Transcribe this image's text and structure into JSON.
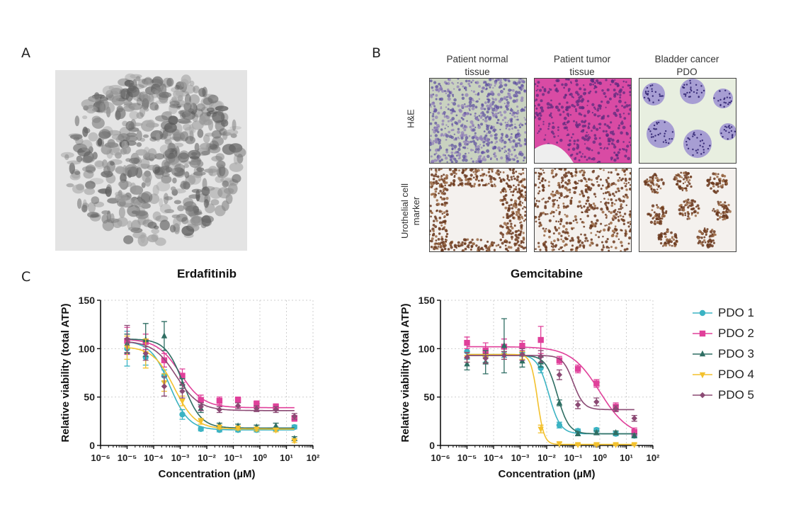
{
  "panels": {
    "a": "A",
    "b": "B",
    "c": "C"
  },
  "histology": {
    "columns": [
      "Patient normal tissue",
      "Patient tumor tissue",
      "Bladder cancer PDO"
    ],
    "column_lines": [
      [
        "Patient normal",
        "tissue"
      ],
      [
        "Patient tumor",
        "tissue"
      ],
      [
        "Bladder cancer",
        "PDO"
      ]
    ],
    "rows": [
      "H&E",
      "Urothelial cell marker"
    ],
    "row_lines": [
      [
        "H&E"
      ],
      [
        "Urothelial cell",
        "marker"
      ]
    ]
  },
  "colors": {
    "PDO 1": "#3bb3c3",
    "PDO 2": "#e0409a",
    "PDO 3": "#2f6e63",
    "PDO 4": "#f3c12d",
    "PDO 5": "#8b4a74"
  },
  "legend": [
    "PDO 1",
    "PDO 2",
    "PDO 3",
    "PDO 4",
    "PDO 5"
  ],
  "chart_data": [
    {
      "type": "scatter",
      "title": "Erdafitinib",
      "xlabel": "Concentration (µM)",
      "ylabel": "Relative viability (total ATP)",
      "x_scale": "log",
      "xlim": [
        1e-06,
        100
      ],
      "x_ticks": [
        "10⁻⁶",
        "10⁻⁵",
        "10⁻⁴",
        "10⁻³",
        "10⁻²",
        "10⁻¹",
        "10⁰",
        "10¹",
        "10²"
      ],
      "ylim": [
        0,
        150
      ],
      "y_ticks": [
        0,
        50,
        100,
        150
      ],
      "grid": true,
      "x": [
        1e-05,
        5e-05,
        0.00025,
        0.0012,
        0.006,
        0.03,
        0.15,
        0.75,
        4,
        20
      ],
      "series": [
        {
          "name": "PDO 1",
          "values": [
            100,
            91,
            72,
            32,
            17,
            16,
            16,
            16,
            17,
            19
          ],
          "errors": [
            18,
            8,
            6,
            5,
            2,
            2,
            2,
            2,
            2,
            2
          ],
          "fit": {
            "top": 108,
            "bottom": 16,
            "ic50": 0.0004,
            "hill": 1.2
          }
        },
        {
          "name": "PDO 2",
          "values": [
            108,
            107,
            88,
            72,
            47,
            46,
            47,
            43,
            40,
            28
          ],
          "errors": [
            14,
            8,
            7,
            7,
            5,
            4,
            3,
            3,
            3,
            3
          ],
          "fit": {
            "top": 110,
            "bottom": 39,
            "ic50": 0.001,
            "hill": 1.0
          }
        },
        {
          "name": "PDO 3",
          "values": [
            105,
            109,
            113,
            64,
            38,
            21,
            20,
            19,
            20,
            7
          ],
          "errors": [
            10,
            17,
            15,
            5,
            4,
            2,
            2,
            2,
            3,
            2
          ],
          "fit": {
            "top": 110,
            "bottom": 18,
            "ic50": 0.0013,
            "hill": 1.3
          }
        },
        {
          "name": "PDO 4",
          "values": [
            101,
            95,
            65,
            46,
            25,
            19,
            18,
            17,
            16,
            5
          ],
          "errors": [
            12,
            15,
            9,
            5,
            3,
            2,
            2,
            2,
            2,
            2
          ],
          "fit": {
            "top": 102,
            "bottom": 17,
            "ic50": 0.0006,
            "hill": 1.1
          }
        },
        {
          "name": "PDO 5",
          "values": [
            110,
            95,
            61,
            56,
            40,
            37,
            41,
            38,
            37,
            30
          ],
          "errors": [
            14,
            7,
            10,
            7,
            4,
            3,
            3,
            3,
            3,
            3
          ],
          "fit": {
            "top": 108,
            "bottom": 36,
            "ic50": 0.0007,
            "hill": 1.0
          }
        }
      ]
    },
    {
      "type": "scatter",
      "title": "Gemcitabine",
      "xlabel": "Concentration (µM)",
      "ylabel": "Relative viability (total ATP)",
      "x_scale": "log",
      "xlim": [
        1e-06,
        100
      ],
      "x_ticks": [
        "10⁻⁶",
        "10⁻⁵",
        "10⁻⁴",
        "10⁻³",
        "10⁻²",
        "10⁻¹",
        "10⁰",
        "10¹",
        "10²"
      ],
      "ylim": [
        0,
        150
      ],
      "y_ticks": [
        0,
        50,
        100,
        150
      ],
      "grid": true,
      "x": [
        1e-05,
        5e-05,
        0.00025,
        0.0012,
        0.006,
        0.03,
        0.15,
        0.75,
        4,
        20
      ],
      "series": [
        {
          "name": "PDO 1",
          "values": [
            97,
            92,
            94,
            96,
            80,
            21,
            15,
            16,
            12,
            10
          ],
          "errors": [
            8,
            6,
            3,
            4,
            5,
            3,
            2,
            2,
            2,
            2
          ],
          "fit": {
            "top": 94,
            "bottom": 12,
            "ic50": 0.012,
            "hill": 2.0
          }
        },
        {
          "name": "PDO 2",
          "values": [
            106,
            98,
            102,
            103,
            109,
            88,
            79,
            64,
            40,
            14
          ],
          "errors": [
            6,
            8,
            8,
            5,
            14,
            4,
            4,
            4,
            4,
            4
          ],
          "fit": {
            "top": 102,
            "bottom": 9,
            "ic50": 1.0,
            "hill": 0.8
          }
        },
        {
          "name": "PDO 3",
          "values": [
            84,
            86,
            103,
            87,
            86,
            44,
            12,
            13,
            13,
            10
          ],
          "errors": [
            6,
            12,
            28,
            6,
            5,
            3,
            2,
            2,
            2,
            2
          ],
          "fit": {
            "top": 93,
            "bottom": 12,
            "ic50": 0.025,
            "hill": 2.0
          }
        },
        {
          "name": "PDO 4",
          "values": [
            91,
            90,
            93,
            93,
            17,
            2,
            1,
            1,
            1,
            1
          ],
          "errors": [
            5,
            5,
            4,
            4,
            4,
            1,
            1,
            1,
            1,
            1
          ],
          "fit": {
            "top": 94,
            "bottom": 1,
            "ic50": 0.0045,
            "hill": 3.5
          }
        },
        {
          "name": "PDO 5",
          "values": [
            91,
            90,
            93,
            94,
            92,
            73,
            42,
            45,
            38,
            28
          ],
          "errors": [
            5,
            5,
            4,
            6,
            6,
            5,
            4,
            4,
            3,
            3
          ],
          "fit": {
            "top": 93,
            "bottom": 37,
            "ic50": 0.1,
            "hill": 2.2
          }
        }
      ]
    }
  ]
}
